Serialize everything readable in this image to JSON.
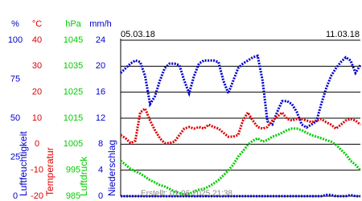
{
  "chart_data": {
    "type": "line",
    "start_label": "05.03.18",
    "end_label": "11.03.18",
    "footer": "Erstellt: 01.06.2025 21:38",
    "grid": true,
    "grid_axis": 1,
    "axes": [
      {
        "unit": "%",
        "title": "Luftfeuchtigkeit",
        "color": "#0000cc",
        "ylim": [
          0,
          100
        ],
        "yticks": [
          0,
          25,
          50,
          75,
          100
        ]
      },
      {
        "unit": "°C",
        "title": "Temperatur",
        "color": "#dd0000",
        "ylim": [
          -20,
          40
        ],
        "yticks": [
          -20,
          -10,
          0,
          10,
          20,
          30,
          40
        ]
      },
      {
        "unit": "hPa",
        "title": "Luftdruck",
        "color": "#00cc00",
        "ylim": [
          985,
          1045
        ],
        "yticks": [
          985,
          995,
          1005,
          1015,
          1025,
          1035,
          1045
        ]
      },
      {
        "unit": "mm/h",
        "title": "Niederschlag",
        "color": "#0000cc",
        "ylim": [
          0,
          24
        ],
        "yticks": [
          0,
          4,
          8,
          12,
          16,
          20,
          24
        ]
      }
    ],
    "series": [
      {
        "axis": 0,
        "color": "#0000cc",
        "values": [
          79,
          82,
          85,
          87,
          86,
          77,
          59,
          64,
          74,
          82,
          85,
          85,
          84,
          74,
          66,
          77,
          85,
          87,
          87,
          87,
          86,
          74,
          66,
          74,
          82,
          85,
          87,
          89,
          90,
          74,
          48,
          46,
          54,
          61,
          61,
          59,
          54,
          46,
          44,
          46,
          48,
          59,
          69,
          77,
          82,
          86,
          89,
          87,
          79,
          84
        ]
      },
      {
        "axis": 1,
        "color": "#dd0000",
        "values": [
          3.5,
          2.3,
          0.4,
          1.3,
          12.2,
          13.7,
          9.1,
          5.4,
          2.3,
          0.4,
          0.4,
          1.0,
          3.5,
          6.0,
          6.6,
          6.0,
          6.6,
          6.0,
          7.5,
          6.6,
          6.0,
          4.4,
          2.9,
          2.9,
          3.5,
          9.1,
          12.2,
          9.1,
          6.6,
          6.0,
          6.6,
          9.1,
          10.6,
          12.2,
          9.7,
          9.1,
          9.7,
          9.7,
          9.1,
          8.5,
          9.1,
          9.7,
          8.5,
          7.5,
          6.0,
          7.5,
          9.1,
          9.7,
          9.1,
          7.5
        ]
      },
      {
        "axis": 2,
        "color": "#00cc00",
        "values": [
          998.6,
          997.1,
          995.5,
          994.6,
          993.7,
          992.5,
          991.2,
          990.3,
          989.3,
          988.7,
          987.8,
          986.8,
          986.2,
          985.6,
          985.9,
          986.8,
          987.5,
          987.8,
          988.7,
          989.9,
          991.2,
          993.0,
          994.9,
          997.1,
          1000.2,
          1002.3,
          1004.8,
          1006.3,
          1007.3,
          1006.0,
          1006.6,
          1007.9,
          1008.5,
          1009.4,
          1010.4,
          1011.0,
          1011.0,
          1010.4,
          1009.4,
          1008.5,
          1007.9,
          1007.3,
          1006.6,
          1006.0,
          1004.8,
          1002.9,
          1001.1,
          998.6,
          997.1,
          994.9
        ]
      },
      {
        "axis": 3,
        "color": "#0000cc",
        "values": [
          0,
          0,
          0,
          0,
          0,
          0,
          0,
          0,
          0,
          0,
          0,
          0,
          0,
          0,
          0,
          0,
          0,
          0,
          0,
          0,
          0,
          0,
          0,
          0,
          0,
          0,
          0,
          0,
          0,
          0,
          0,
          0,
          0,
          0,
          0,
          0,
          0,
          0,
          0,
          0,
          0,
          0,
          0.2,
          0.2,
          0,
          0,
          0,
          0.2,
          0,
          0
        ]
      }
    ]
  }
}
